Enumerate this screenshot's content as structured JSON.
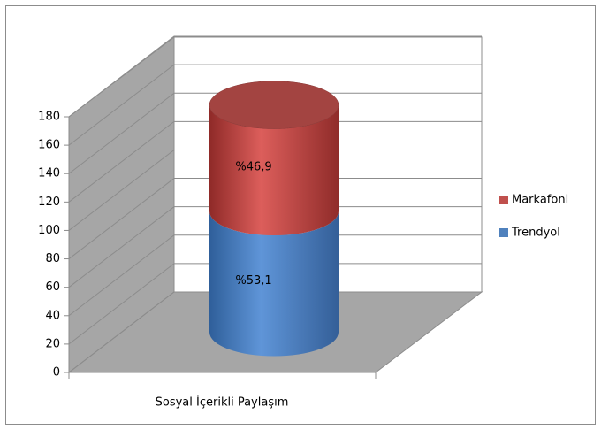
{
  "chart_data": {
    "type": "bar3d_cylinder_stacked",
    "categories": [
      "Sosyal İçerikli Paylaşım"
    ],
    "series": [
      {
        "name": "Trendyol",
        "color": "#4f81bd",
        "values": [
          85
        ],
        "value_labels": [
          "%53,1"
        ]
      },
      {
        "name": "Markafoni",
        "color": "#c0504d",
        "values": [
          75
        ],
        "value_labels": [
          "%46,9"
        ]
      }
    ],
    "ylim": [
      0,
      180
    ],
    "yticks": [
      0,
      20,
      40,
      60,
      80,
      100,
      120,
      140,
      160,
      180
    ],
    "grid": true,
    "legend": "right"
  }
}
